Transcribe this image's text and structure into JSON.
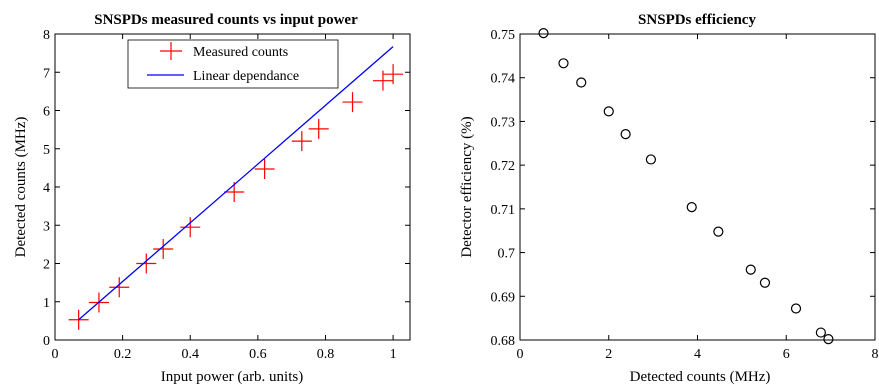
{
  "chart_data": [
    {
      "type": "scatter",
      "title": "SNSPDs measured counts vs input power",
      "xlabel": "Input power (arb. units)",
      "ylabel": "Detected counts (MHz)",
      "xlim": [
        0,
        1.05
      ],
      "ylim": [
        0,
        8
      ],
      "x_ticks": [
        "0",
        "0.2",
        "0.4",
        "0.6",
        "0.8",
        "1"
      ],
      "y_ticks": [
        "0",
        "1",
        "2",
        "3",
        "4",
        "5",
        "6",
        "7",
        "8"
      ],
      "grid": false,
      "legend_position": "top-center",
      "series": [
        {
          "name": "Measured counts",
          "marker": "plus",
          "color": "#ff0000",
          "x": [
            0.07,
            0.13,
            0.19,
            0.27,
            0.32,
            0.4,
            0.53,
            0.62,
            0.73,
            0.78,
            0.88,
            0.97,
            1.0
          ],
          "y": [
            0.53,
            0.98,
            1.38,
            2.0,
            2.38,
            2.95,
            3.87,
            4.47,
            5.2,
            5.52,
            6.22,
            6.78,
            6.95
          ]
        },
        {
          "name": "Linear dependance",
          "marker": "line",
          "color": "#0000ff",
          "x": [
            0.07,
            1.0
          ],
          "y": [
            0.53,
            7.67
          ]
        }
      ]
    },
    {
      "type": "scatter",
      "title": "SNSPDs efficiency",
      "xlabel": "Detected counts (MHz)",
      "ylabel": "Detector efficiency (%)",
      "xlim": [
        0,
        8
      ],
      "ylim": [
        0.68,
        0.75
      ],
      "x_ticks": [
        "0",
        "2",
        "4",
        "6",
        "8"
      ],
      "y_ticks": [
        "0.68",
        "0.69",
        "0.7",
        "0.71",
        "0.72",
        "0.73",
        "0.74",
        "0.75"
      ],
      "grid": false,
      "series": [
        {
          "marker": "circle",
          "color": "#000000",
          "x": [
            0.53,
            0.98,
            1.38,
            2.0,
            2.38,
            2.95,
            3.87,
            4.47,
            5.2,
            5.52,
            6.22,
            6.78,
            6.95
          ],
          "y": [
            0.7502,
            0.7433,
            0.7389,
            0.7323,
            0.7271,
            0.7213,
            0.7104,
            0.7048,
            0.6961,
            0.6931,
            0.6872,
            0.6817,
            0.6802
          ]
        }
      ]
    }
  ]
}
